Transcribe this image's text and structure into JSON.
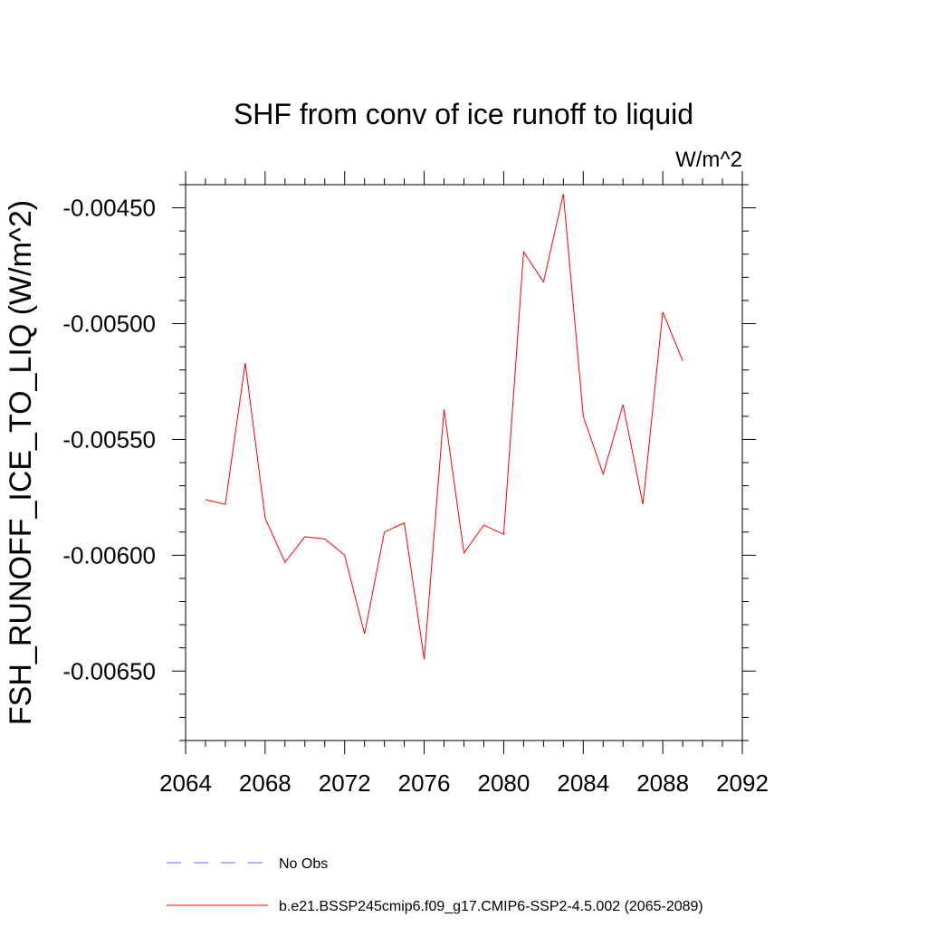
{
  "chart_data": {
    "type": "line",
    "title": "SHF from conv of ice runoff to liquid",
    "units_label": "W/m^2",
    "ylabel": "FSH_RUNOFF_ICE_TO_LIQ  (W/m^2)",
    "xlabel": "",
    "xlim": [
      2064,
      2092
    ],
    "ylim": [
      -0.0068,
      -0.0044
    ],
    "x_ticks": [
      2064,
      2068,
      2072,
      2076,
      2080,
      2084,
      2088,
      2092
    ],
    "x_tick_labels": [
      "2064",
      "2068",
      "2072",
      "2076",
      "2080",
      "2084",
      "2088",
      "2092"
    ],
    "y_ticks": [
      -0.0045,
      -0.005,
      -0.0055,
      -0.006,
      -0.0065
    ],
    "y_tick_labels": [
      "-0.00450",
      "-0.00500",
      "-0.00550",
      "-0.00600",
      "-0.00650"
    ],
    "grid": false,
    "legend_position": "bottom",
    "series": [
      {
        "name": "b.e21.BSSP245cmip6.f09_g17.CMIP6-SSP2-4.5.002 (2065-2089)",
        "color": "#ff0000",
        "style": "solid",
        "x": [
          2065,
          2066,
          2067,
          2068,
          2069,
          2070,
          2071,
          2072,
          2073,
          2074,
          2075,
          2076,
          2077,
          2078,
          2079,
          2080,
          2081,
          2082,
          2083,
          2084,
          2085,
          2086,
          2087,
          2088,
          2089
        ],
        "y": [
          -0.00576,
          -0.00578,
          -0.00517,
          -0.00584,
          -0.00603,
          -0.00592,
          -0.00593,
          -0.006,
          -0.00634,
          -0.0059,
          -0.00586,
          -0.00645,
          -0.00537,
          -0.00599,
          -0.00587,
          -0.00591,
          -0.00469,
          -0.00482,
          -0.00444,
          -0.0054,
          -0.00565,
          -0.00535,
          -0.00578,
          -0.00495,
          -0.00516
        ]
      }
    ],
    "legend": [
      {
        "label": "No Obs",
        "color": "#6b6bd6",
        "style": "dashed"
      },
      {
        "label": "b.e21.BSSP245cmip6.f09_g17.CMIP6-SSP2-4.5.002 (2065-2089)",
        "color": "#ff0000",
        "style": "solid"
      }
    ]
  }
}
